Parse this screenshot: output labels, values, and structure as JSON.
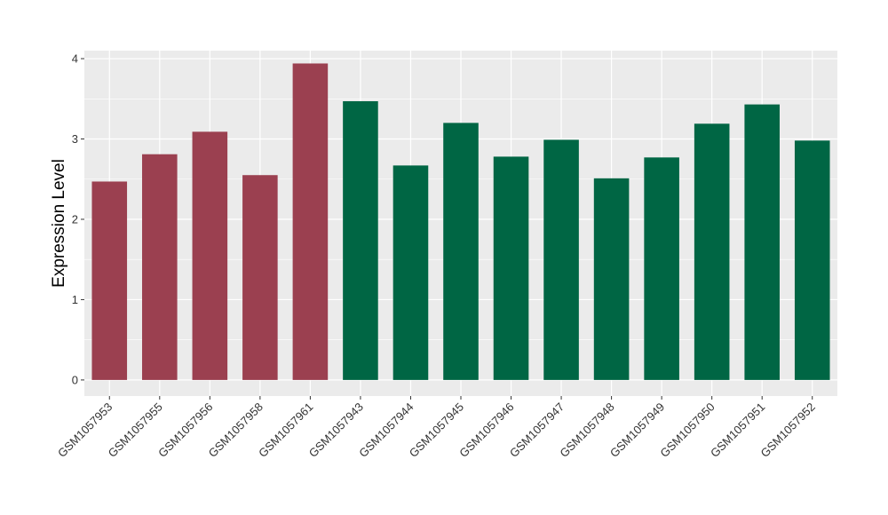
{
  "chart_data": {
    "type": "bar",
    "title": "",
    "xlabel": "",
    "ylabel": "Expression Level",
    "ylim": [
      -0.2,
      4.1
    ],
    "yticks": [
      0,
      1,
      2,
      3,
      4
    ],
    "grid": true,
    "legend": "none",
    "categories": [
      "GSM1057953",
      "GSM1057955",
      "GSM1057956",
      "GSM1057958",
      "GSM1057961",
      "GSM1057943",
      "GSM1057944",
      "GSM1057945",
      "GSM1057946",
      "GSM1057947",
      "GSM1057948",
      "GSM1057949",
      "GSM1057950",
      "GSM1057951",
      "GSM1057952"
    ],
    "values": [
      2.47,
      2.81,
      3.09,
      2.55,
      3.94,
      3.47,
      2.67,
      3.2,
      2.78,
      2.99,
      2.51,
      2.77,
      3.19,
      3.43,
      2.98
    ],
    "groups": [
      0,
      0,
      0,
      0,
      0,
      1,
      1,
      1,
      1,
      1,
      1,
      1,
      1,
      1,
      1
    ],
    "group_colors": [
      "#9B4050",
      "#006644"
    ],
    "panel_color": "#EBEBEB",
    "grid_color": "#FFFFFF"
  }
}
